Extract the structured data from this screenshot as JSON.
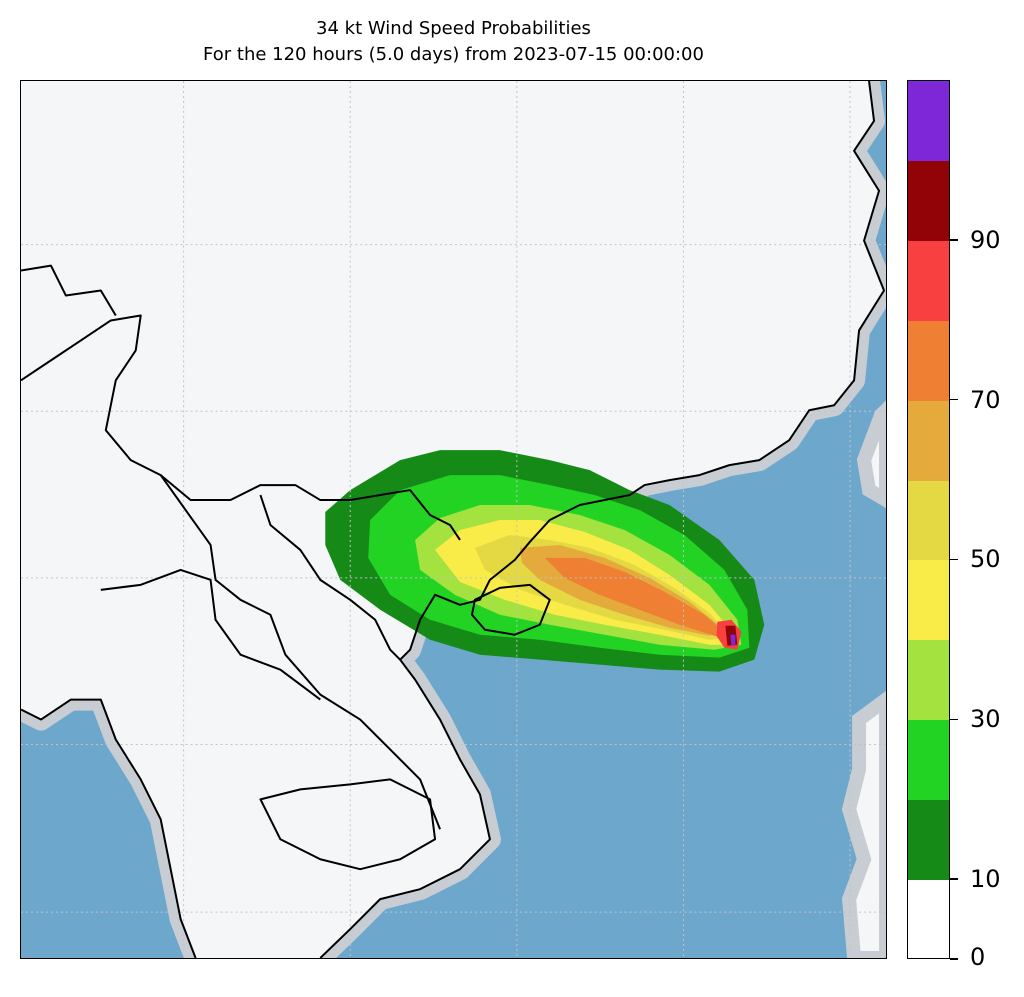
{
  "title": {
    "line1": "34 kt Wind Speed Probabilities",
    "line2": "For the 120 hours (5.0 days) from 2023-07-15 00:00:00"
  },
  "map": {
    "ocean_color": "#6ea7cc",
    "land_color": "#f4f6f8",
    "coastline_color": "#000000",
    "gridlines": "dotted"
  },
  "colorbar": {
    "range": [
      0,
      100
    ],
    "step": 10,
    "bins": [
      {
        "from": 0,
        "to": 10,
        "color": "#ffffff"
      },
      {
        "from": 10,
        "to": 20,
        "color": "#158a16"
      },
      {
        "from": 20,
        "to": 30,
        "color": "#22d324"
      },
      {
        "from": 30,
        "to": 40,
        "color": "#a3e23f"
      },
      {
        "from": 40,
        "to": 50,
        "color": "#faec48"
      },
      {
        "from": 50,
        "to": 60,
        "color": "#e5d943"
      },
      {
        "from": 60,
        "to": 70,
        "color": "#e5aa3c"
      },
      {
        "from": 70,
        "to": 80,
        "color": "#ee7f33"
      },
      {
        "from": 80,
        "to": 90,
        "color": "#f94040"
      },
      {
        "from": 90,
        "to": 100,
        "color": "#910306"
      },
      {
        "from": 100,
        "to": 110,
        "color": "#7e27d9"
      }
    ],
    "tick_labels": [
      "0",
      "10",
      "30",
      "50",
      "70",
      "90"
    ],
    "tick_values": [
      0,
      10,
      30,
      50,
      70,
      90
    ]
  }
}
